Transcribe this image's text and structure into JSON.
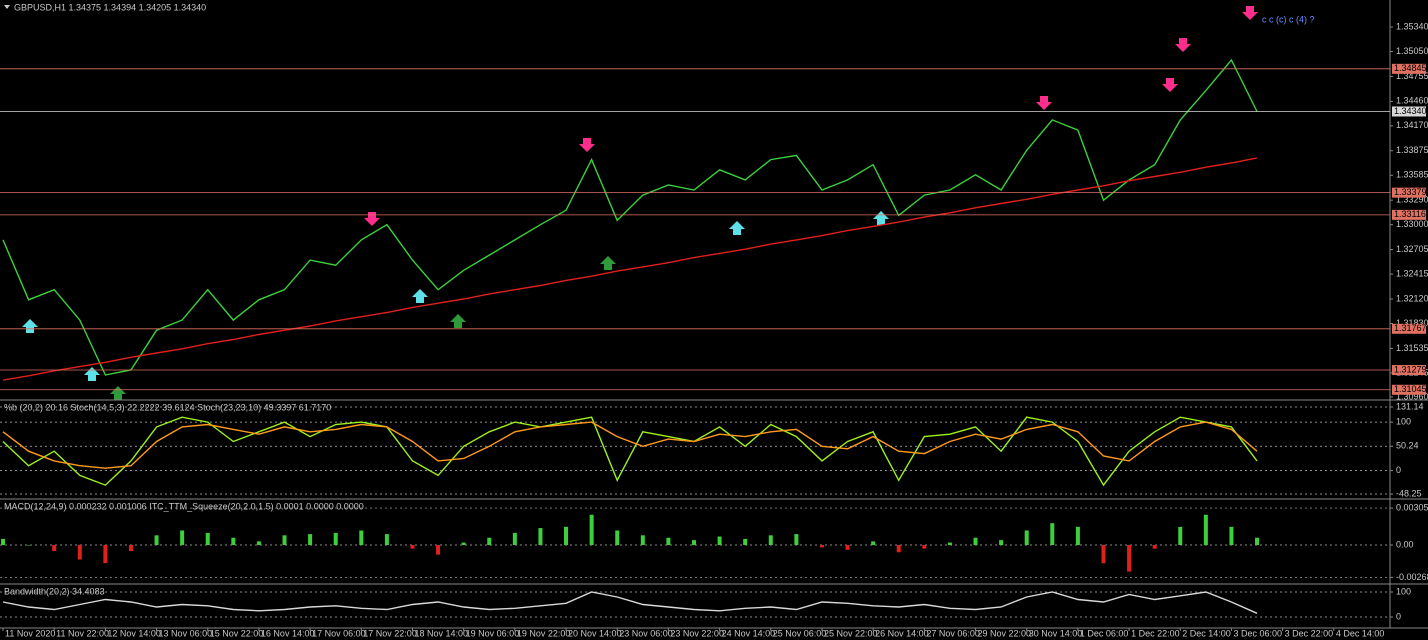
{
  "chart_data": [
    {
      "type": "line",
      "title": "GBPUSD,H1  1.34375 1.34394 1.34205 1.34340",
      "annotation": "c  c  (c)  c  (4) ?",
      "categories": [
        "11 Nov 2020",
        null,
        "11 Nov 22:00",
        null,
        "12 Nov 14:00",
        null,
        "13 Nov 06:00",
        null,
        "15 Nov 22:00",
        null,
        "16 Nov 14:00",
        null,
        "17 Nov 06:00",
        null,
        "17 Nov 22:00",
        null,
        "18 Nov 14:00",
        null,
        "19 Nov 06:00",
        null,
        "19 Nov 22:00",
        null,
        "20 Nov 14:00",
        null,
        "23 Nov 06:00",
        null,
        "23 Nov 22:00",
        null,
        "24 Nov 14:00",
        null,
        "25 Nov 06:00",
        null,
        "25 Nov 22:00",
        null,
        "26 Nov 14:00",
        null,
        "27 Nov 06:00",
        null,
        "29 Nov 22:00",
        null,
        "30 Nov 14:00",
        null,
        "1 Dec 06:00",
        null,
        "1 Dec 22:00",
        null,
        "2 Dec 14:00",
        null,
        "3 Dec 06:00",
        null,
        "3 Dec 22:00",
        null,
        "4 Dec 14:00",
        null
      ],
      "series": [
        {
          "color": "#3cd13c",
          "values": [
            1.3282,
            1.3211,
            1.3223,
            1.3187,
            1.3122,
            1.3128,
            1.3175,
            1.3187,
            1.3223,
            1.3187,
            1.3211,
            1.3223,
            1.3258,
            1.3252,
            1.3282,
            1.33,
            1.3258,
            1.3223,
            1.3246,
            1.3264,
            1.3282,
            1.33,
            1.3317,
            1.3377,
            1.3305,
            1.3335,
            1.3347,
            1.3341,
            1.3365,
            1.3353,
            1.3377,
            1.3382,
            1.3341,
            1.3353,
            1.3371,
            1.3311,
            1.3335,
            1.3341,
            1.3359,
            1.3341,
            1.3388,
            1.3424,
            1.3412,
            1.3329,
            1.3353,
            1.3371,
            1.3424,
            1.3459,
            1.3495,
            1.3434,
            null,
            null,
            null,
            null
          ]
        },
        {
          "color": "#e0201c",
          "values": [
            1.3116,
            1.3121,
            1.3127,
            1.3132,
            1.3137,
            1.3143,
            1.3148,
            1.3153,
            1.3159,
            1.3164,
            1.317,
            1.3175,
            1.318,
            1.3186,
            1.3191,
            1.3196,
            1.3202,
            1.3207,
            1.3212,
            1.3218,
            1.3223,
            1.3228,
            1.3234,
            1.3239,
            1.3245,
            1.325,
            1.3255,
            1.3261,
            1.3266,
            1.3271,
            1.3277,
            1.3282,
            1.3287,
            1.3293,
            1.3298,
            1.3303,
            1.3309,
            1.3314,
            1.332,
            1.3325,
            1.333,
            1.3336,
            1.3341,
            1.3346,
            1.3352,
            1.3357,
            1.3362,
            1.3368,
            1.3373,
            1.3379,
            null,
            null,
            null,
            null
          ]
        }
      ],
      "ylim": [
        1.30924,
        1.3566
      ],
      "yticks": [
        {
          "value": 1.3534,
          "label": "1.35340"
        },
        {
          "value": 1.3505,
          "label": "1.35050"
        },
        {
          "value": 1.34755,
          "label": "1.34755"
        },
        {
          "value": 1.3446,
          "label": "1.34460"
        },
        {
          "value": 1.3417,
          "label": "1.34170"
        },
        {
          "value": 1.33875,
          "label": "1.33875"
        },
        {
          "value": 1.33585,
          "label": "1.33585"
        },
        {
          "value": 1.3329,
          "label": "1.33290"
        },
        {
          "value": 1.33,
          "label": "1.33000"
        },
        {
          "value": 1.32705,
          "label": "1.32705"
        },
        {
          "value": 1.32415,
          "label": "1.32415"
        },
        {
          "value": 1.3212,
          "label": "1.32120"
        },
        {
          "value": 1.3183,
          "label": "1.31830"
        },
        {
          "value": 1.31535,
          "label": "1.31535"
        },
        {
          "value": 1.31245,
          "label": "1.31245"
        },
        {
          "value": 1.3096,
          "label": "1.30960"
        }
      ],
      "levels": [
        {
          "value": 1.34845,
          "label": "1.34845",
          "color": "#e07060"
        },
        {
          "value": 1.3434,
          "label": "1.34340",
          "color": "#d8d8d8"
        },
        {
          "value": 1.33379,
          "label": "1.33379",
          "color": "#e07060"
        },
        {
          "value": 1.33116,
          "label": "1.33116",
          "color": "#e07060"
        },
        {
          "value": 1.31767,
          "label": "1.31767",
          "color": "#e07060"
        },
        {
          "value": 1.31279,
          "label": "1.31279",
          "color": "#e07060"
        },
        {
          "value": 1.31045,
          "label": "1.31045",
          "color": "#e07060"
        }
      ],
      "grid": false
    },
    {
      "type": "line",
      "title": "%b (20,2) 20.16  Stoch(14,5,3) 22.2222 39.6124  Stoch(23,23,10) 49.3397 61.7170",
      "series": [
        {
          "color": "#9cf01c",
          "values": [
            60,
            10,
            40,
            -10,
            -30,
            20,
            90,
            110,
            100,
            60,
            80,
            100,
            70,
            95,
            100,
            90,
            20,
            -10,
            50,
            80,
            100,
            90,
            100,
            110,
            -20,
            80,
            70,
            60,
            90,
            50,
            95,
            70,
            20,
            60,
            80,
            -20,
            70,
            75,
            90,
            40,
            110,
            100,
            60,
            -30,
            40,
            80,
            110,
            100,
            90,
            20,
            null,
            null,
            null,
            null
          ]
        },
        {
          "color": "#ff9a1c",
          "values": [
            80,
            40,
            20,
            10,
            5,
            10,
            60,
            90,
            95,
            85,
            75,
            90,
            80,
            85,
            95,
            90,
            60,
            20,
            25,
            50,
            80,
            90,
            95,
            100,
            70,
            50,
            65,
            60,
            75,
            70,
            80,
            85,
            50,
            45,
            70,
            40,
            35,
            60,
            75,
            65,
            85,
            95,
            80,
            30,
            20,
            60,
            90,
            100,
            85,
            40,
            null,
            null,
            null,
            null
          ]
        }
      ],
      "ylim": [
        -56.5,
        143.5
      ],
      "yticks": [
        131.14,
        100,
        50.24,
        0,
        -48.25
      ],
      "grid": true
    },
    {
      "type": "bar",
      "title": "MACD(12,24,9) 0.000232 0.001006  ITC_TTM_Squeeze(20,2.0,1.5) 0.0001 0.0000 0.0000",
      "up_color": "#3cd13c",
      "down_color": "#e0201c",
      "values": [
        0.0005,
        0,
        -0.0005,
        -0.0012,
        -0.0015,
        -0.0005,
        0.0008,
        0.0012,
        0.001,
        0.0006,
        0.0003,
        0.0008,
        0.0009,
        0.001,
        0.0012,
        0.0009,
        -0.0003,
        -0.0008,
        0.0002,
        0.0006,
        0.001,
        0.0014,
        0.0015,
        0.0025,
        0.0012,
        0.0008,
        0.0006,
        0.0004,
        0.0007,
        0.0005,
        0.0008,
        0.0009,
        -0.0002,
        -0.0004,
        0.0003,
        -0.0006,
        -0.0003,
        0.0002,
        0.0006,
        0.0004,
        0.0012,
        0.0018,
        0.0015,
        -0.0015,
        -0.0022,
        -0.0003,
        0.0015,
        0.0025,
        0.0015,
        0.0006,
        null,
        null,
        null,
        null
      ],
      "ylim": [
        -0.00306,
        0.00372
      ],
      "yticks": [
        0.003055,
        {
          "value": 0,
          "label": "0.00"
        },
        -0.002681
      ],
      "grid": true
    },
    {
      "type": "line",
      "title": "Bandwidth(20,2) 34.4083",
      "series": [
        {
          "color": "#d8d8d8",
          "values": [
            60,
            40,
            30,
            50,
            70,
            60,
            40,
            50,
            45,
            30,
            25,
            30,
            40,
            45,
            35,
            30,
            50,
            60,
            40,
            30,
            35,
            45,
            55,
            100,
            80,
            50,
            40,
            30,
            25,
            35,
            40,
            30,
            60,
            55,
            45,
            40,
            50,
            35,
            30,
            40,
            80,
            100,
            70,
            60,
            90,
            70,
            85,
            100,
            60,
            15,
            null,
            null,
            null,
            null
          ]
        }
      ],
      "ylim": [
        -40,
        128
      ],
      "yticks": [
        100,
        0
      ],
      "grid": true
    }
  ]
}
